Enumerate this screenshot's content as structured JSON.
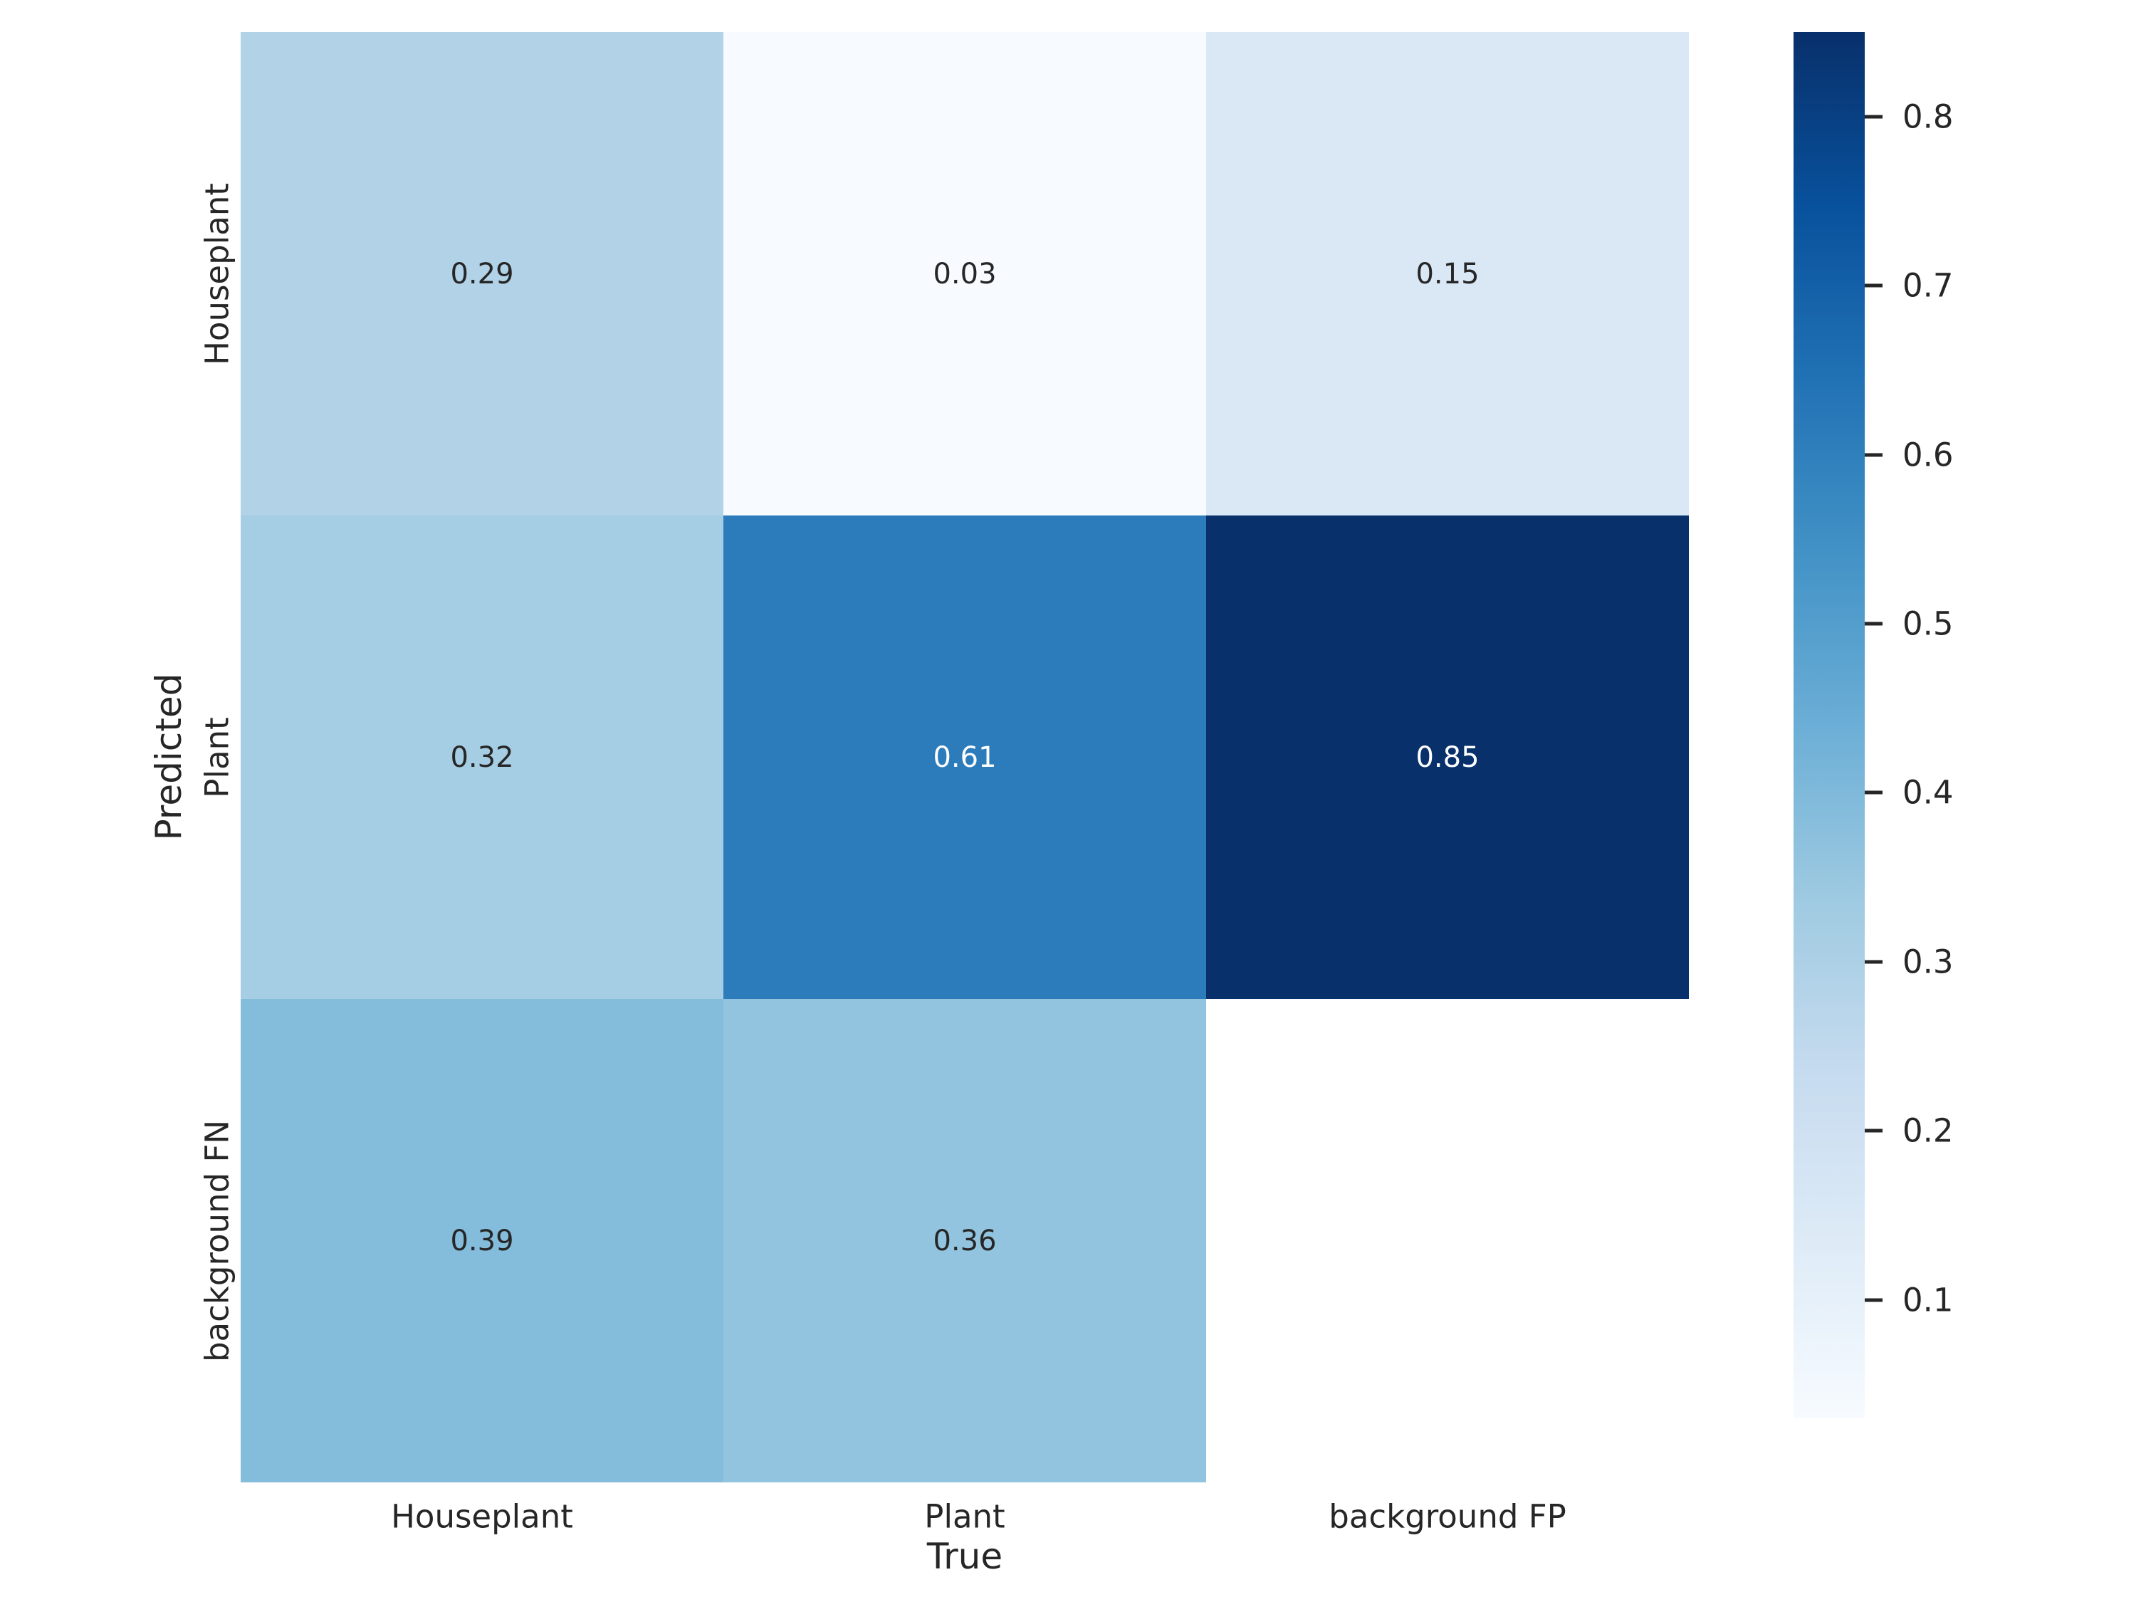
{
  "figure": {
    "background": "#ffffff"
  },
  "chart_data": {
    "type": "heatmap",
    "title": "",
    "xlabel": "True",
    "ylabel": "Predicted",
    "x_categories": [
      "Houseplant",
      "Plant",
      "background FP"
    ],
    "y_categories": [
      "Houseplant",
      "Plant",
      "background FN"
    ],
    "cells": [
      [
        0.29,
        0.03,
        0.15
      ],
      [
        0.32,
        0.61,
        0.85
      ],
      [
        0.39,
        0.36,
        null
      ]
    ],
    "annotations": [
      [
        "0.29",
        "0.03",
        "0.15"
      ],
      [
        "0.32",
        "0.61",
        "0.85"
      ],
      [
        "0.39",
        "0.36",
        ""
      ]
    ],
    "vmin": 0.03,
    "vmax": 0.85,
    "colormap": "Blues",
    "colorbar_ticks": [
      0.1,
      0.2,
      0.3,
      0.4,
      0.5,
      0.6,
      0.7,
      0.8
    ],
    "colorbar_tick_labels": [
      "0.1",
      "0.2",
      "0.3",
      "0.4",
      "0.5",
      "0.6",
      "0.7",
      "0.8"
    ],
    "colorbar_position": "right",
    "grid": false,
    "masked_cells": [
      [
        2,
        2
      ]
    ]
  },
  "colors": {
    "background": "#ffffff",
    "tick_text": "#262626",
    "annotation_dark": "#262626",
    "annotation_light": "#ffffff",
    "masked_cell": "#ffffff",
    "blues_stops": [
      "#f7fbff",
      "#deebf7",
      "#c6dbef",
      "#9ecae1",
      "#6baed6",
      "#4292c6",
      "#2171b5",
      "#08519c",
      "#08306b"
    ],
    "dark_text_threshold": 0.55
  }
}
